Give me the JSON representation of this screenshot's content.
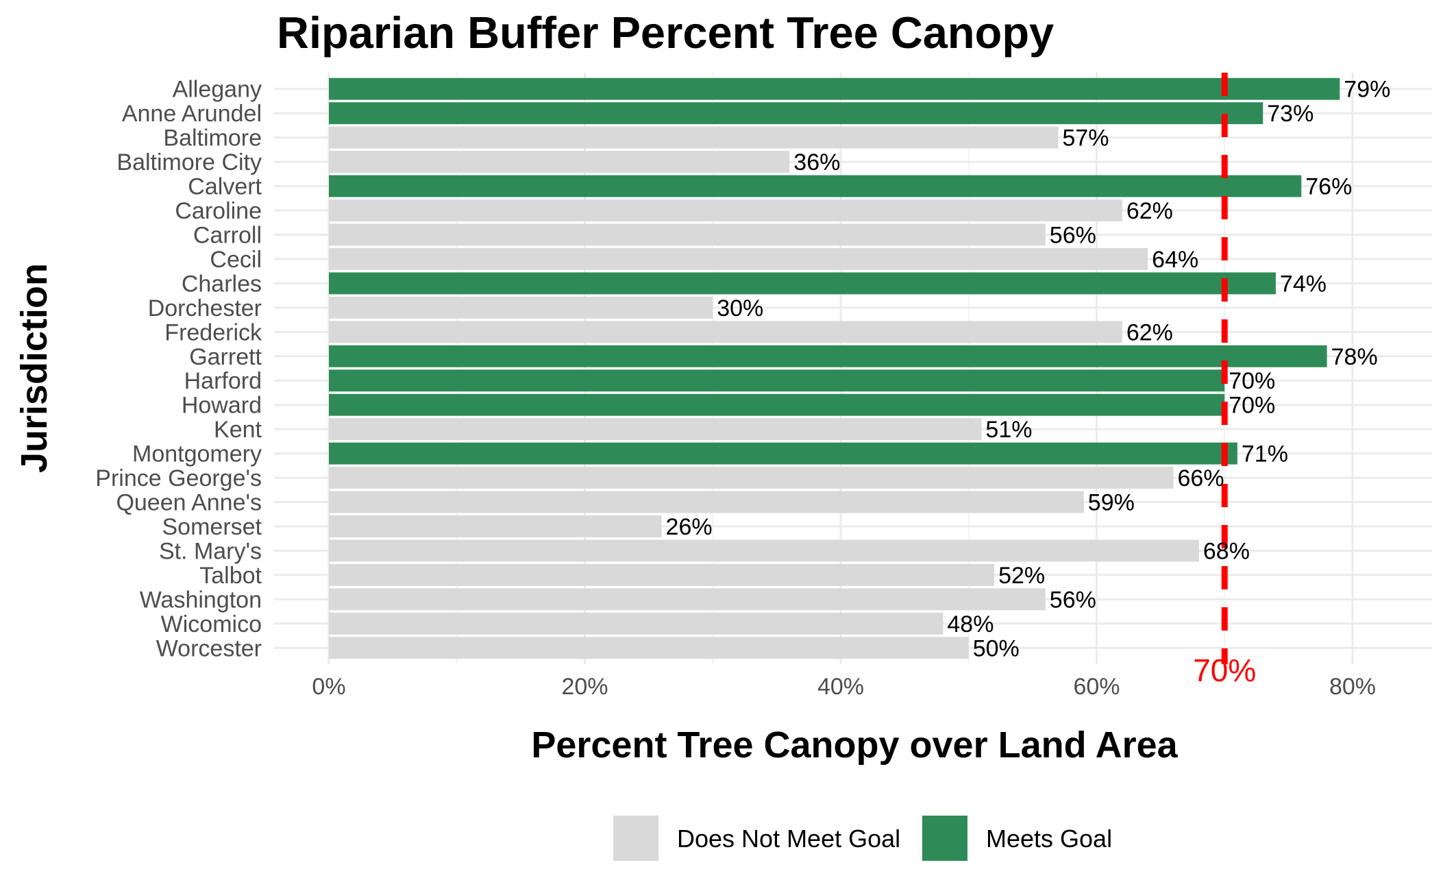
{
  "chart_data": {
    "type": "bar",
    "orientation": "horizontal",
    "title": "Riparian Buffer Percent Tree Canopy",
    "xlabel": "Percent Tree Canopy over Land Area",
    "ylabel": "Jurisdiction",
    "xlim": [
      0,
      80
    ],
    "x_ticks": [
      "0%",
      "20%",
      "40%",
      "60%",
      "80%"
    ],
    "x_tick_values": [
      0,
      20,
      40,
      60,
      80
    ],
    "grid": true,
    "legend_position": "bottom",
    "goal": {
      "value": 70,
      "label": "70%",
      "color": "#ff0000",
      "style": "dashed"
    },
    "colors": {
      "Meets Goal": "#2e8b57",
      "Does Not Meet Goal": "#d9d9d9"
    },
    "legend": [
      "Does Not Meet Goal",
      "Meets Goal"
    ],
    "categories": [
      "Allegany",
      "Anne Arundel",
      "Baltimore",
      "Baltimore City",
      "Calvert",
      "Caroline",
      "Carroll",
      "Cecil",
      "Charles",
      "Dorchester",
      "Frederick",
      "Garrett",
      "Harford",
      "Howard",
      "Kent",
      "Montgomery",
      "Prince George's",
      "Queen Anne's",
      "Somerset",
      "St. Mary's",
      "Talbot",
      "Washington",
      "Wicomico",
      "Worcester"
    ],
    "values": [
      79,
      73,
      57,
      36,
      76,
      62,
      56,
      64,
      74,
      30,
      62,
      78,
      70,
      70,
      51,
      71,
      66,
      59,
      26,
      68,
      52,
      56,
      48,
      50
    ],
    "value_labels": [
      "79%",
      "73%",
      "57%",
      "36%",
      "76%",
      "62%",
      "56%",
      "64%",
      "74%",
      "30%",
      "62%",
      "78%",
      "70%",
      "70%",
      "51%",
      "71%",
      "66%",
      "59%",
      "26%",
      "68%",
      "52%",
      "56%",
      "48%",
      "50%"
    ],
    "status": [
      "Meets Goal",
      "Meets Goal",
      "Does Not Meet Goal",
      "Does Not Meet Goal",
      "Meets Goal",
      "Does Not Meet Goal",
      "Does Not Meet Goal",
      "Does Not Meet Goal",
      "Meets Goal",
      "Does Not Meet Goal",
      "Does Not Meet Goal",
      "Meets Goal",
      "Meets Goal",
      "Meets Goal",
      "Does Not Meet Goal",
      "Meets Goal",
      "Does Not Meet Goal",
      "Does Not Meet Goal",
      "Does Not Meet Goal",
      "Does Not Meet Goal",
      "Does Not Meet Goal",
      "Does Not Meet Goal",
      "Does Not Meet Goal",
      "Does Not Meet Goal"
    ]
  }
}
